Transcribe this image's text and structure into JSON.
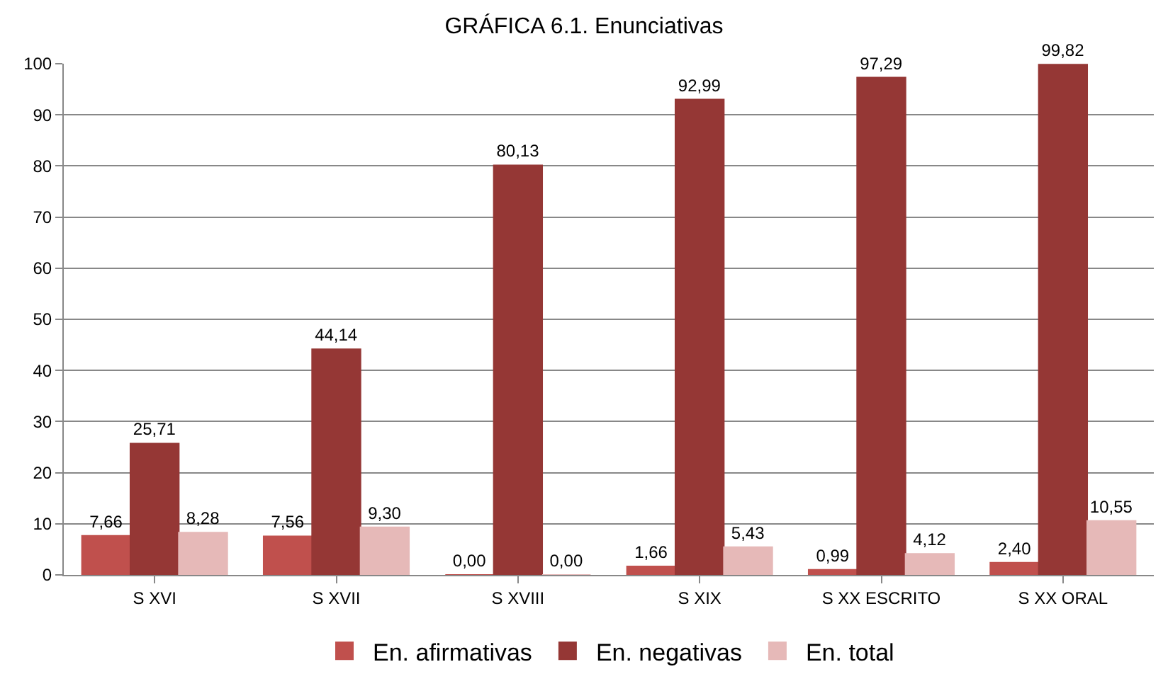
{
  "chart_data": {
    "type": "bar",
    "title": "GRÁFICA 6.1. Enunciativas",
    "categories": [
      "S XVI",
      "S XVII",
      "S XVIII",
      "S XIX",
      "S XX ESCRITO",
      "S XX ORAL"
    ],
    "series": [
      {
        "name": "En. afirmativas",
        "color": "#c0504d",
        "values": [
          7.66,
          7.56,
          0.0,
          1.66,
          0.99,
          2.4
        ],
        "value_labels": [
          "7,66",
          "7,56",
          "0,00",
          "1,66",
          "0,99",
          "2,40"
        ]
      },
      {
        "name": "En. negativas",
        "color": "#953735",
        "values": [
          25.71,
          44.14,
          80.13,
          92.99,
          97.29,
          99.82
        ],
        "value_labels": [
          "25,71",
          "44,14",
          "80,13",
          "92,99",
          "97,29",
          "99,82"
        ]
      },
      {
        "name": "En. total",
        "color": "#e6b9b8",
        "values": [
          8.28,
          9.3,
          0.0,
          5.43,
          4.12,
          10.55
        ],
        "value_labels": [
          "8,28",
          "9,30",
          "0,00",
          "5,43",
          "4,12",
          "10,55"
        ]
      }
    ],
    "ylim": [
      0,
      100
    ],
    "yticks": [
      0,
      10,
      20,
      30,
      40,
      50,
      60,
      70,
      80,
      90,
      100
    ],
    "grid": "y",
    "legend": "bottom"
  }
}
